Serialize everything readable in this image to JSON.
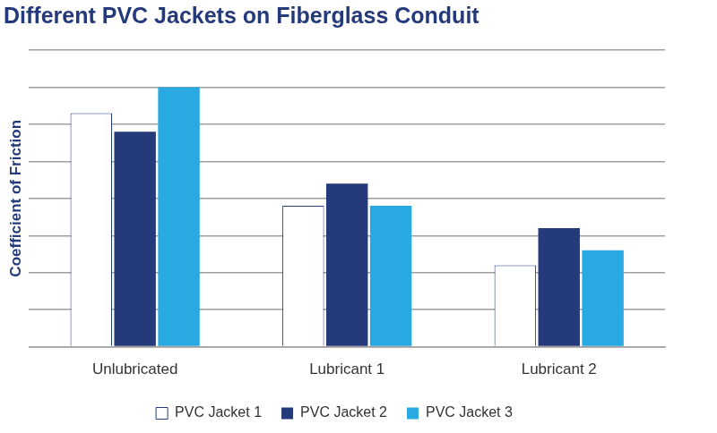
{
  "chart_data": {
    "type": "bar",
    "title": "Different PVC Jackets on Fiberglass Conduit",
    "y_label": "Coefficient of Friction",
    "categories": [
      "Unlubricated",
      "Lubricant 1",
      "Lubricant 2"
    ],
    "series": [
      {
        "name": "PVC Jacket 1",
        "color": "#ffffff",
        "values": [
          6.3,
          3.8,
          2.2
        ]
      },
      {
        "name": "PVC Jacket 2",
        "color": "#253a7a",
        "values": [
          5.8,
          4.4,
          3.2
        ]
      },
      {
        "name": "PVC Jacket 3",
        "color": "#29a9e1",
        "values": [
          7.0,
          3.8,
          2.6
        ]
      }
    ],
    "ylim": [
      0,
      8
    ],
    "yticks": [
      0,
      1,
      2,
      3,
      4,
      5,
      6,
      7,
      8
    ],
    "grid": true,
    "legend": "bottom",
    "tick_labels": "x"
  }
}
